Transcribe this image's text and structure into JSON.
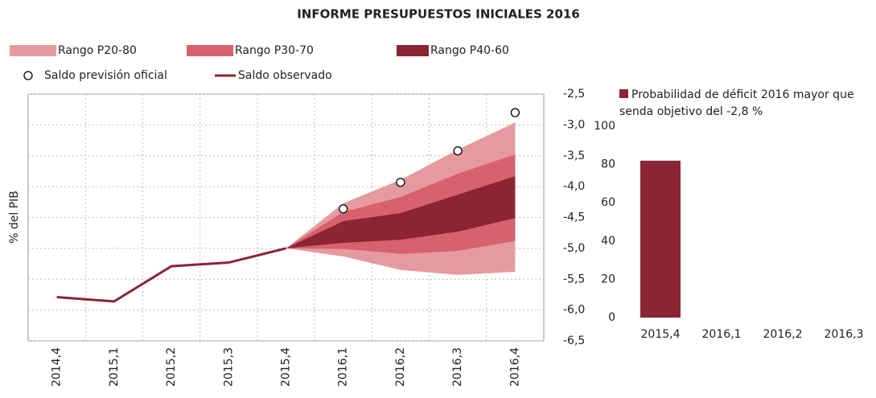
{
  "chart_data": [
    {
      "type": "fan",
      "title": "INFORME PRESUPUESTOS INICIALES 2016",
      "y_label": "% del PIB",
      "categories": [
        "2014,4",
        "2015,1",
        "2015,2",
        "2015,3",
        "2015,4",
        "2016,1",
        "2016,2",
        "2016,3",
        "2016,4"
      ],
      "ylim": [
        -6.5,
        -2.5
      ],
      "yticks": [
        {
          "value": -2.5,
          "label": "-2,5"
        },
        {
          "value": -3.0,
          "label": "-3,0"
        },
        {
          "value": -3.5,
          "label": "-3,5"
        },
        {
          "value": -4.0,
          "label": "-4,0"
        },
        {
          "value": -4.5,
          "label": "-4,5"
        },
        {
          "value": -5.0,
          "label": "-5,0"
        },
        {
          "value": -5.5,
          "label": "-5,5"
        },
        {
          "value": -6.0,
          "label": "-6,0"
        },
        {
          "value": -6.5,
          "label": "-6,5"
        }
      ],
      "grid": true,
      "bands": [
        {
          "name": "Rango P20-80",
          "color": "#e59aa0",
          "lower": [
            null,
            null,
            null,
            null,
            -5.0,
            -5.13,
            -5.35,
            -5.43,
            -5.38
          ],
          "upper": [
            null,
            null,
            null,
            null,
            -5.0,
            -4.27,
            -3.89,
            -3.4,
            -2.96
          ]
        },
        {
          "name": "Rango P30-70",
          "color": "#d7616d",
          "lower": [
            null,
            null,
            null,
            null,
            -5.0,
            -5.01,
            -5.09,
            -5.04,
            -4.88
          ],
          "upper": [
            null,
            null,
            null,
            null,
            -5.0,
            -4.41,
            -4.17,
            -3.79,
            -3.48
          ]
        },
        {
          "name": "Rango P40-60",
          "color": "#8b2433",
          "lower": [
            null,
            null,
            null,
            null,
            -5.0,
            -4.91,
            -4.86,
            -4.73,
            -4.51
          ],
          "upper": [
            null,
            null,
            null,
            null,
            -5.0,
            -4.56,
            -4.43,
            -4.13,
            -3.83
          ]
        }
      ],
      "series": [
        {
          "name": "Saldo previsión oficial",
          "style": "marker",
          "color": "#000000",
          "values": [
            null,
            null,
            null,
            null,
            null,
            -4.36,
            -3.93,
            -3.42,
            -2.8
          ]
        },
        {
          "name": "Saldo observado",
          "style": "line",
          "color": "#8b2433",
          "values": [
            -5.79,
            -5.86,
            -5.29,
            -5.23,
            -5.0,
            null,
            null,
            null,
            null
          ]
        }
      ]
    },
    {
      "type": "bar",
      "categories": [
        "2015,4",
        "2016,1",
        "2016,2",
        "2016,3"
      ],
      "ylim": [
        0,
        100
      ],
      "yticks": [
        0,
        20,
        40,
        60,
        80,
        100
      ],
      "series": [
        {
          "name": "Probabilidad de déficit 2016 mayor que senda objetivo del -2,8 %",
          "color": "#8b2433",
          "values": [
            82,
            null,
            null,
            null
          ]
        }
      ]
    }
  ]
}
